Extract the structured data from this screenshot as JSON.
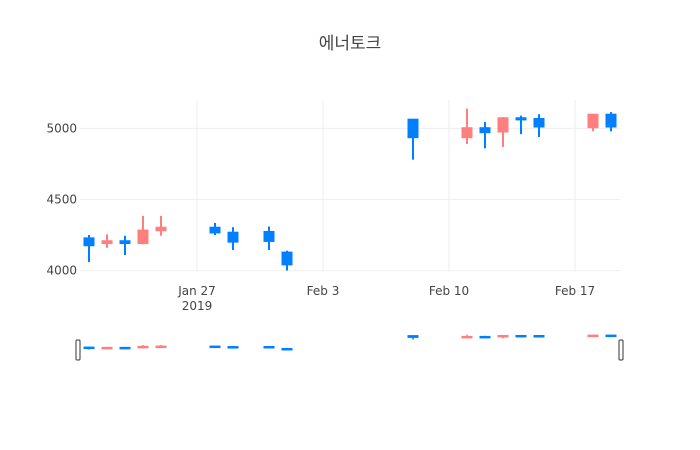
{
  "chart_data": {
    "type": "candlestick",
    "title": "에너토크",
    "xlabel": "",
    "ylabel": "",
    "x_ticks": [
      {
        "date": "2019-01-27",
        "label": "Jan 27",
        "sublabel": "2019"
      },
      {
        "date": "2019-02-03",
        "label": "Feb 3",
        "sublabel": ""
      },
      {
        "date": "2019-02-10",
        "label": "Feb 10",
        "sublabel": ""
      },
      {
        "date": "2019-02-17",
        "label": "Feb 17",
        "sublabel": ""
      }
    ],
    "y_ticks": [
      4000,
      4500,
      5000
    ],
    "ylim": [
      3990,
      5200
    ],
    "xlim": [
      "2019-01-20",
      "2019-02-19"
    ],
    "grid": true,
    "rangeslider": true,
    "increasing_color": "#FF7F7F",
    "decreasing_color": "#007FFF",
    "candles": [
      {
        "date": "2019-01-21",
        "open": 4230,
        "high": 4250,
        "low": 4060,
        "close": 4175
      },
      {
        "date": "2019-01-22",
        "open": 4190,
        "high": 4255,
        "low": 4160,
        "close": 4210
      },
      {
        "date": "2019-01-23",
        "open": 4210,
        "high": 4245,
        "low": 4110,
        "close": 4190
      },
      {
        "date": "2019-01-24",
        "open": 4190,
        "high": 4385,
        "low": 4185,
        "close": 4285
      },
      {
        "date": "2019-01-25",
        "open": 4280,
        "high": 4385,
        "low": 4245,
        "close": 4305
      },
      {
        "date": "2019-01-28",
        "open": 4305,
        "high": 4335,
        "low": 4250,
        "close": 4265
      },
      {
        "date": "2019-01-29",
        "open": 4270,
        "high": 4305,
        "low": 4145,
        "close": 4200
      },
      {
        "date": "2019-01-31",
        "open": 4275,
        "high": 4310,
        "low": 4145,
        "close": 4205
      },
      {
        "date": "2019-02-01",
        "open": 4130,
        "high": 4140,
        "low": 4000,
        "close": 4040
      },
      {
        "date": "2019-02-08",
        "open": 5065,
        "high": 5065,
        "low": 4780,
        "close": 4935
      },
      {
        "date": "2019-02-11",
        "open": 4935,
        "high": 5140,
        "low": 4890,
        "close": 5005
      },
      {
        "date": "2019-02-12",
        "open": 5005,
        "high": 5045,
        "low": 4860,
        "close": 4970
      },
      {
        "date": "2019-02-13",
        "open": 4975,
        "high": 5080,
        "low": 4870,
        "close": 5075
      },
      {
        "date": "2019-02-14",
        "open": 5075,
        "high": 5090,
        "low": 4960,
        "close": 5060
      },
      {
        "date": "2019-02-15",
        "open": 5070,
        "high": 5100,
        "low": 4940,
        "close": 5010
      },
      {
        "date": "2019-02-18",
        "open": 5005,
        "high": 5100,
        "low": 4980,
        "close": 5100
      },
      {
        "date": "2019-02-19",
        "open": 5100,
        "high": 5115,
        "low": 4980,
        "close": 5010
      }
    ]
  }
}
